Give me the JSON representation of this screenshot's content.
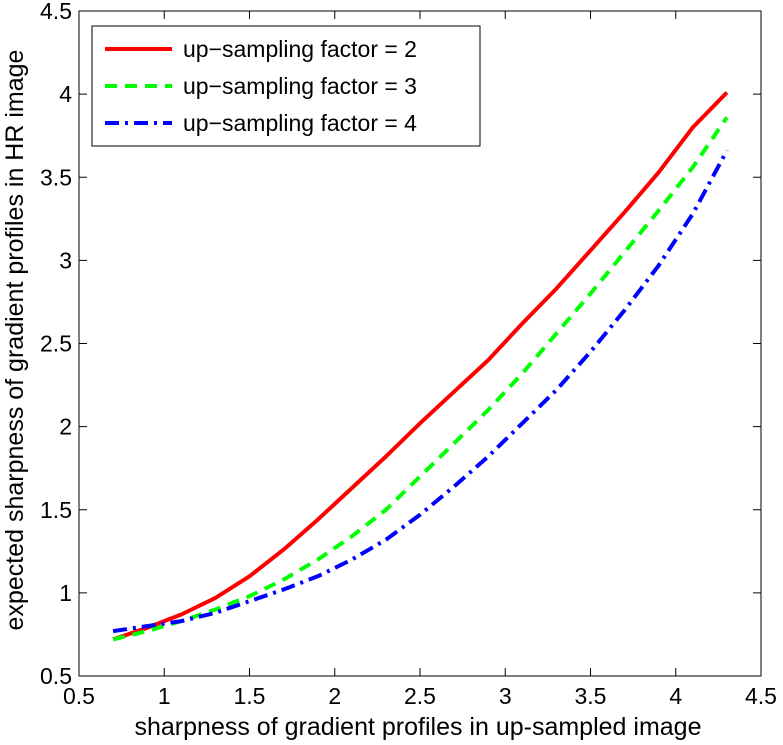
{
  "chart_data": {
    "type": "line",
    "title": "",
    "xlabel": "sharpness of gradient profiles in up-sampled image",
    "ylabel": "expected sharpness of gradient profiles in HR image",
    "xlim": [
      0.5,
      4.5
    ],
    "ylim": [
      0.5,
      4.5
    ],
    "xticks": [
      "0.5",
      "1",
      "1.5",
      "2",
      "2.5",
      "3",
      "3.5",
      "4",
      "4.5"
    ],
    "yticks": [
      "0.5",
      "1",
      "1.5",
      "2",
      "2.5",
      "3",
      "3.5",
      "4",
      "4.5"
    ],
    "grid": false,
    "legend_position": "top-left",
    "series": [
      {
        "name": "up−sampling factor = 2",
        "color": "#ff0000",
        "dash": "solid",
        "x": [
          0.7,
          0.9,
          1.1,
          1.3,
          1.5,
          1.7,
          1.9,
          2.1,
          2.3,
          2.5,
          2.7,
          2.9,
          3.1,
          3.3,
          3.5,
          3.7,
          3.9,
          4.1,
          4.3
        ],
        "y": [
          0.72,
          0.79,
          0.87,
          0.97,
          1.1,
          1.26,
          1.44,
          1.63,
          1.82,
          2.02,
          2.21,
          2.4,
          2.62,
          2.83,
          3.06,
          3.29,
          3.53,
          3.8,
          4.01
        ]
      },
      {
        "name": "up−sampling factor = 3",
        "color": "#00ff00",
        "dash": "dashed",
        "x": [
          0.7,
          0.9,
          1.1,
          1.3,
          1.5,
          1.7,
          1.9,
          2.1,
          2.3,
          2.5,
          2.7,
          2.9,
          3.1,
          3.3,
          3.5,
          3.7,
          3.9,
          4.1,
          4.3
        ],
        "y": [
          0.72,
          0.77,
          0.83,
          0.9,
          0.98,
          1.08,
          1.2,
          1.34,
          1.5,
          1.7,
          1.9,
          2.1,
          2.32,
          2.56,
          2.8,
          3.05,
          3.3,
          3.56,
          3.86
        ]
      },
      {
        "name": "up−sampling factor = 4",
        "color": "#0000ff",
        "dash": "dashdot",
        "x": [
          0.7,
          0.9,
          1.1,
          1.3,
          1.5,
          1.7,
          1.9,
          2.1,
          2.3,
          2.5,
          2.7,
          2.9,
          3.1,
          3.3,
          3.5,
          3.7,
          3.9,
          4.1,
          4.3
        ],
        "y": [
          0.77,
          0.8,
          0.83,
          0.88,
          0.95,
          1.02,
          1.1,
          1.2,
          1.32,
          1.47,
          1.64,
          1.82,
          2.02,
          2.22,
          2.45,
          2.7,
          2.97,
          3.28,
          3.66
        ]
      }
    ]
  }
}
